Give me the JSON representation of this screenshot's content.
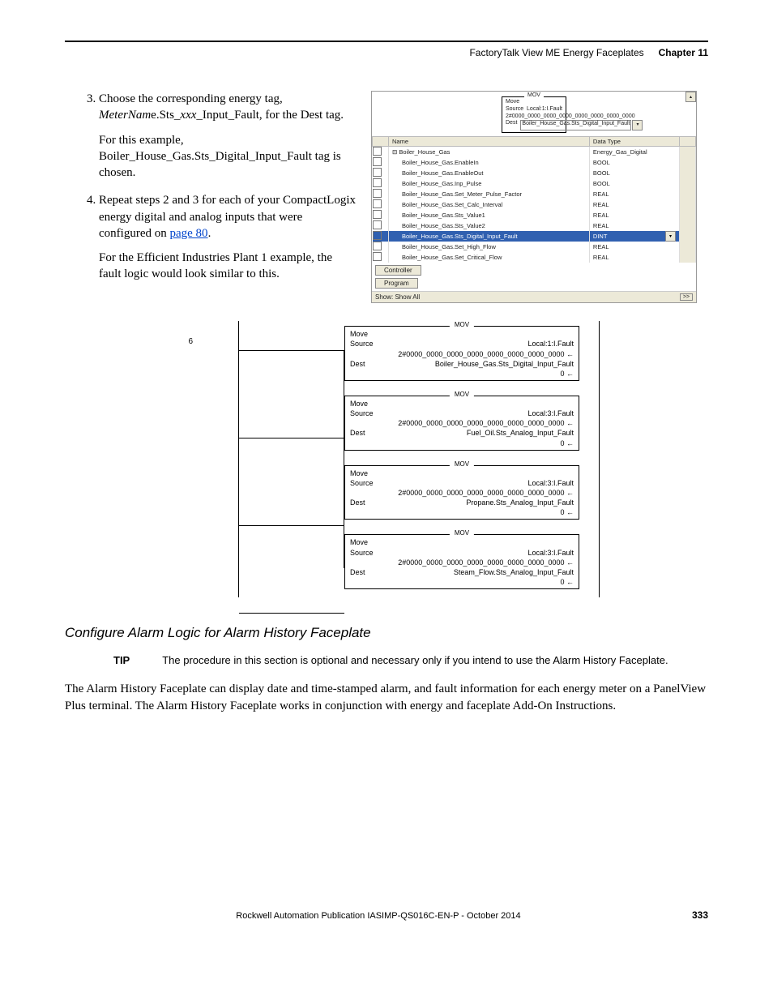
{
  "header": {
    "title": "FactoryTalk View ME Energy Faceplates",
    "chapter": "Chapter 11"
  },
  "steps": {
    "s3_a": "Choose the corresponding energy tag, ",
    "s3_b": "MeterNam",
    "s3_c": "e.Sts_",
    "s3_d": "xxx",
    "s3_e": "_Input_Fault, for the Dest tag.",
    "s3_p1": "For this example, Boiler_House_Gas.Sts_Digital_Input_Fault tag is chosen.",
    "s4_a": "Repeat steps 2 and 3 for each of your CompactLogix energy digital and analog inputs that were configured on ",
    "s4_link": "page 80",
    "s4_b": ".",
    "s4_p1": "For the Efficient Industries Plant 1 example, the fault logic would look similar to this."
  },
  "topshot": {
    "mov": {
      "label": "MOV",
      "move": "Move",
      "source": "Source",
      "src_val": "Local:1:I.Fault",
      "src_bin": "2#0000_0000_0000_0000_0000_0000_0000_0000",
      "dest": "Dest",
      "dest_val": "Boiler_House_Gas.Sts_Digital_Input_Fault"
    },
    "name_hdr": "Name",
    "type_hdr": "Data Type",
    "rows": [
      {
        "n": "Boiler_House_Gas",
        "t": "Energy_Gas_Digital",
        "root": true
      },
      {
        "n": "Boiler_House_Gas.EnableIn",
        "t": "BOOL"
      },
      {
        "n": "Boiler_House_Gas.EnableOut",
        "t": "BOOL"
      },
      {
        "n": "Boiler_House_Gas.Inp_Pulse",
        "t": "BOOL"
      },
      {
        "n": "Boiler_House_Gas.Set_Meter_Pulse_Factor",
        "t": "REAL"
      },
      {
        "n": "Boiler_House_Gas.Set_Calc_Interval",
        "t": "REAL"
      },
      {
        "n": "Boiler_House_Gas.Sts_Value1",
        "t": "REAL"
      },
      {
        "n": "Boiler_House_Gas.Sts_Value2",
        "t": "REAL"
      },
      {
        "n": "Boiler_House_Gas.Sts_Digital_Input_Fault",
        "t": "DINT",
        "sel": true
      },
      {
        "n": "Boiler_House_Gas.Set_High_Flow",
        "t": "REAL"
      },
      {
        "n": "Boiler_House_Gas.Set_Critical_Flow",
        "t": "REAL"
      }
    ],
    "btn1": "Controller",
    "btn2": "Program",
    "show": "Show: Show All",
    "expand": ">>"
  },
  "ladder": {
    "rung": "6",
    "blocks": [
      {
        "lbl": "MOV",
        "move": "Move",
        "src": "Source",
        "srcv": "Local:1:I.Fault",
        "bin": "2#0000_0000_0000_0000_0000_0000_0000_0000",
        "dest": "Dest",
        "destv": "Boiler_House_Gas.Sts_Digital_Input_Fault",
        "z": "0"
      },
      {
        "lbl": "MOV",
        "move": "Move",
        "src": "Source",
        "srcv": "Local:3:I.Fault",
        "bin": "2#0000_0000_0000_0000_0000_0000_0000_0000",
        "dest": "Dest",
        "destv": "Fuel_Oil.Sts_Analog_Input_Fault",
        "z": "0"
      },
      {
        "lbl": "MOV",
        "move": "Move",
        "src": "Source",
        "srcv": "Local:3:I.Fault",
        "bin": "2#0000_0000_0000_0000_0000_0000_0000_0000",
        "dest": "Dest",
        "destv": "Propane.Sts_Analog_Input_Fault",
        "z": "0"
      },
      {
        "lbl": "MOV",
        "move": "Move",
        "src": "Source",
        "srcv": "Local:3:I.Fault",
        "bin": "2#0000_0000_0000_0000_0000_0000_0000_0000",
        "dest": "Dest",
        "destv": "Steam_Flow.Sts_Analog_Input_Fault",
        "z": "0"
      }
    ]
  },
  "subhead": "Configure Alarm Logic for Alarm History Faceplate",
  "tip": {
    "label": "TIP",
    "text": "The procedure in this section is optional and necessary only if you intend to use the Alarm History Faceplate."
  },
  "para": "The Alarm History Faceplate can display date and time-stamped alarm, and fault information for each energy meter on a PanelView Plus terminal. The Alarm History Faceplate works in conjunction with energy and faceplate Add-On Instructions.",
  "footer": {
    "pub": "Rockwell Automation Publication IASIMP-QS016C-EN-P - October 2014",
    "page": "333"
  }
}
